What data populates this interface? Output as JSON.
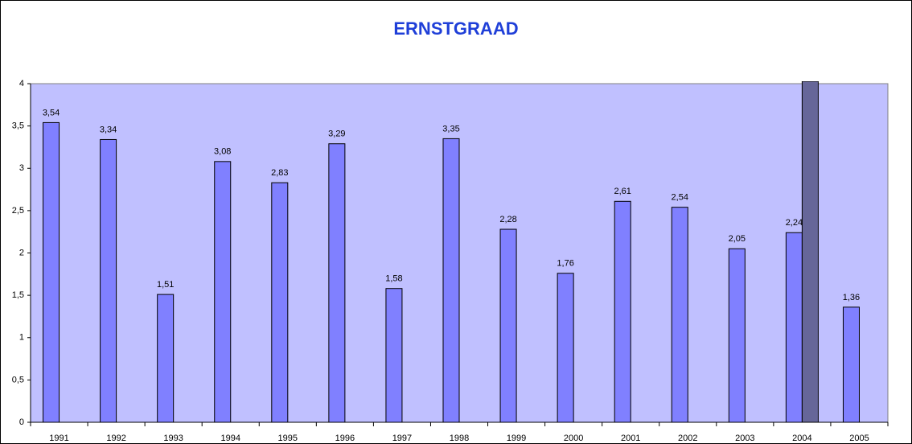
{
  "chart_data": {
    "type": "bar",
    "title": "ERNSTGRAAD",
    "categories": [
      "1991",
      "1992",
      "1993",
      "1994",
      "1995",
      "1996",
      "1997",
      "1998",
      "1999",
      "2000",
      "2001",
      "2002",
      "2003",
      "2004",
      "2005"
    ],
    "series": [
      {
        "color": "#8080ff",
        "values": [
          3.54,
          3.34,
          1.51,
          3.08,
          2.83,
          3.29,
          1.58,
          3.35,
          2.28,
          1.76,
          2.61,
          2.54,
          2.05,
          2.24,
          1.36
        ],
        "value_labels": [
          "3,54",
          "3,34",
          "1,51",
          "3,08",
          "2,83",
          "3,29",
          "1,58",
          "3,35",
          "2,28",
          "1,76",
          "2,61",
          "2,54",
          "2,05",
          "2,24",
          "1,36"
        ]
      },
      {
        "color": "#666699",
        "values": [
          null,
          null,
          null,
          null,
          null,
          null,
          null,
          null,
          null,
          null,
          null,
          null,
          null,
          4,
          null
        ]
      }
    ],
    "ylim": [
      0,
      4
    ],
    "yticks": [
      0,
      {
        "value": 0.5,
        "label": "0,5"
      },
      1,
      {
        "value": 1.5,
        "label": "1,5"
      },
      2,
      {
        "value": 2.5,
        "label": "2,5"
      },
      3,
      {
        "value": 3.5,
        "label": "3,5"
      },
      4
    ],
    "plot_background": "#c0c0ff"
  }
}
